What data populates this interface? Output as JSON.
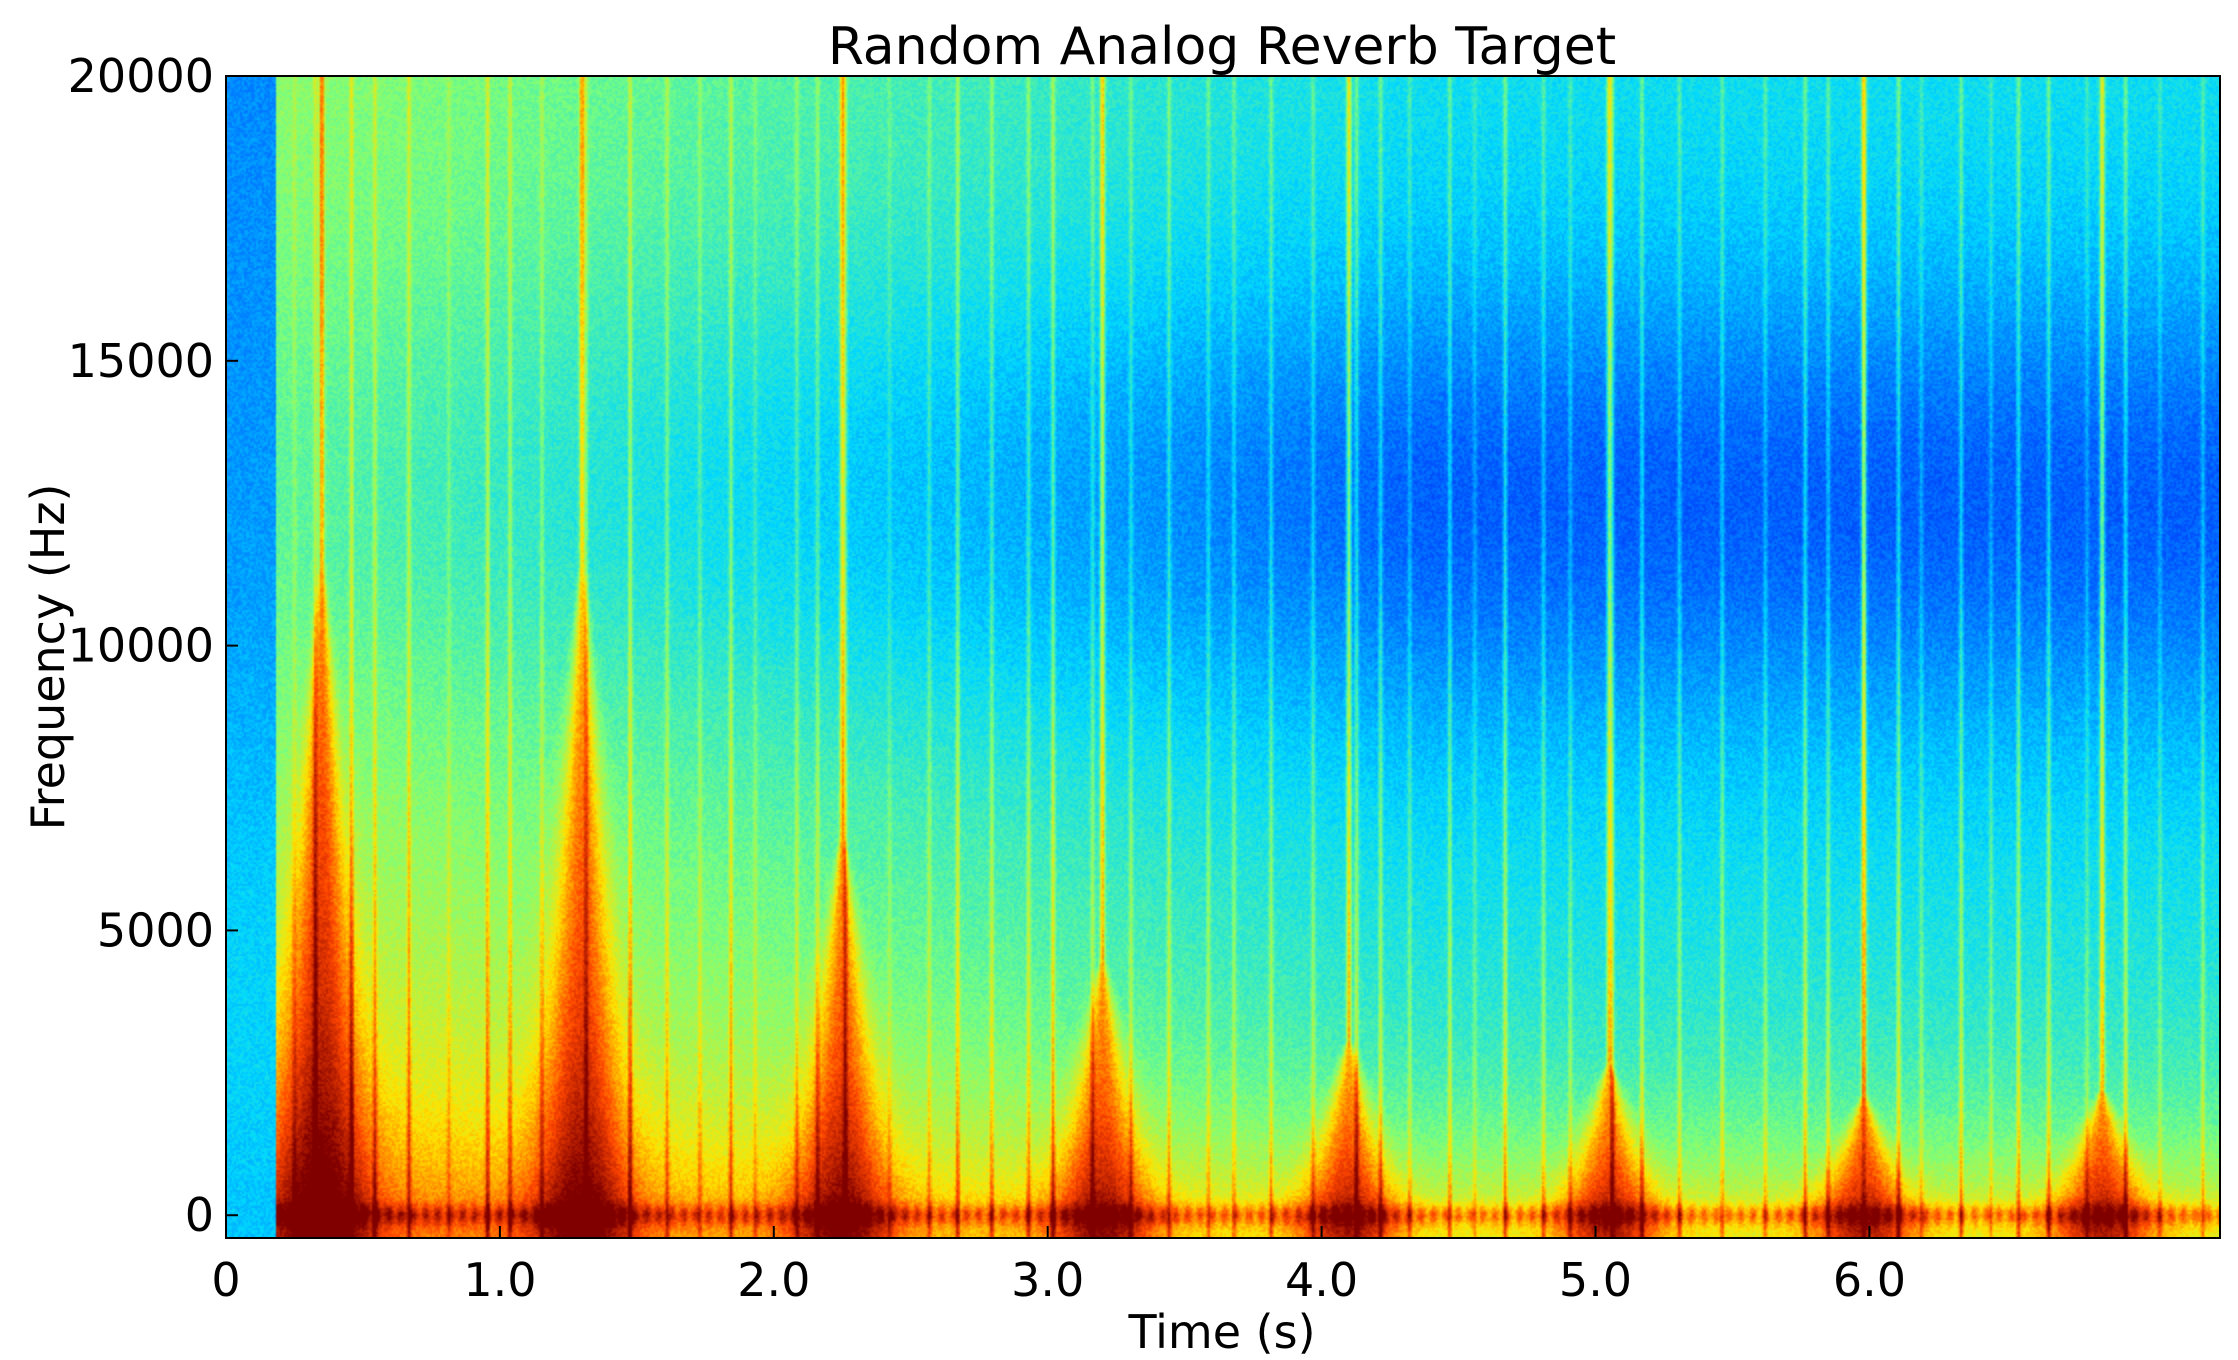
{
  "chart_data": {
    "type": "heatmap",
    "title": "Random Analog Reverb Target",
    "xlabel": "Time (s)",
    "ylabel": "Frequency (Hz)",
    "xlim": [
      0,
      7.28
    ],
    "ylim": [
      -400,
      20000
    ],
    "x_ticks": [
      {
        "value": 0,
        "label": "0"
      },
      {
        "value": 1.0,
        "label": "1.0"
      },
      {
        "value": 2.0,
        "label": "2.0"
      },
      {
        "value": 3.0,
        "label": "3.0"
      },
      {
        "value": 4.0,
        "label": "4.0"
      },
      {
        "value": 5.0,
        "label": "5.0"
      },
      {
        "value": 6.0,
        "label": "6.0"
      }
    ],
    "y_ticks": [
      {
        "value": 0,
        "label": "0"
      },
      {
        "value": 5000,
        "label": "5000"
      },
      {
        "value": 10000,
        "label": "10000"
      },
      {
        "value": 15000,
        "label": "15000"
      },
      {
        "value": 20000,
        "label": "20000"
      }
    ],
    "colormap": [
      "#00007f",
      "#0050ff",
      "#00d8ff",
      "#7dff7a",
      "#ffe400",
      "#ff4600",
      "#800000"
    ],
    "signal_onset_s": 0.18,
    "bursts": [
      {
        "time_s": 0.35,
        "peak_freq_hz": 12000
      },
      {
        "time_s": 1.3,
        "peak_freq_hz": 12000
      },
      {
        "time_s": 2.25,
        "peak_freq_hz": 7000
      },
      {
        "time_s": 3.2,
        "peak_freq_hz": 4700
      },
      {
        "time_s": 4.1,
        "peak_freq_hz": 3200
      },
      {
        "time_s": 5.05,
        "peak_freq_hz": 2800
      },
      {
        "time_s": 5.98,
        "peak_freq_hz": 2200
      },
      {
        "time_s": 6.85,
        "peak_freq_hz": 2300
      }
    ],
    "grid": false,
    "legend": "none"
  }
}
